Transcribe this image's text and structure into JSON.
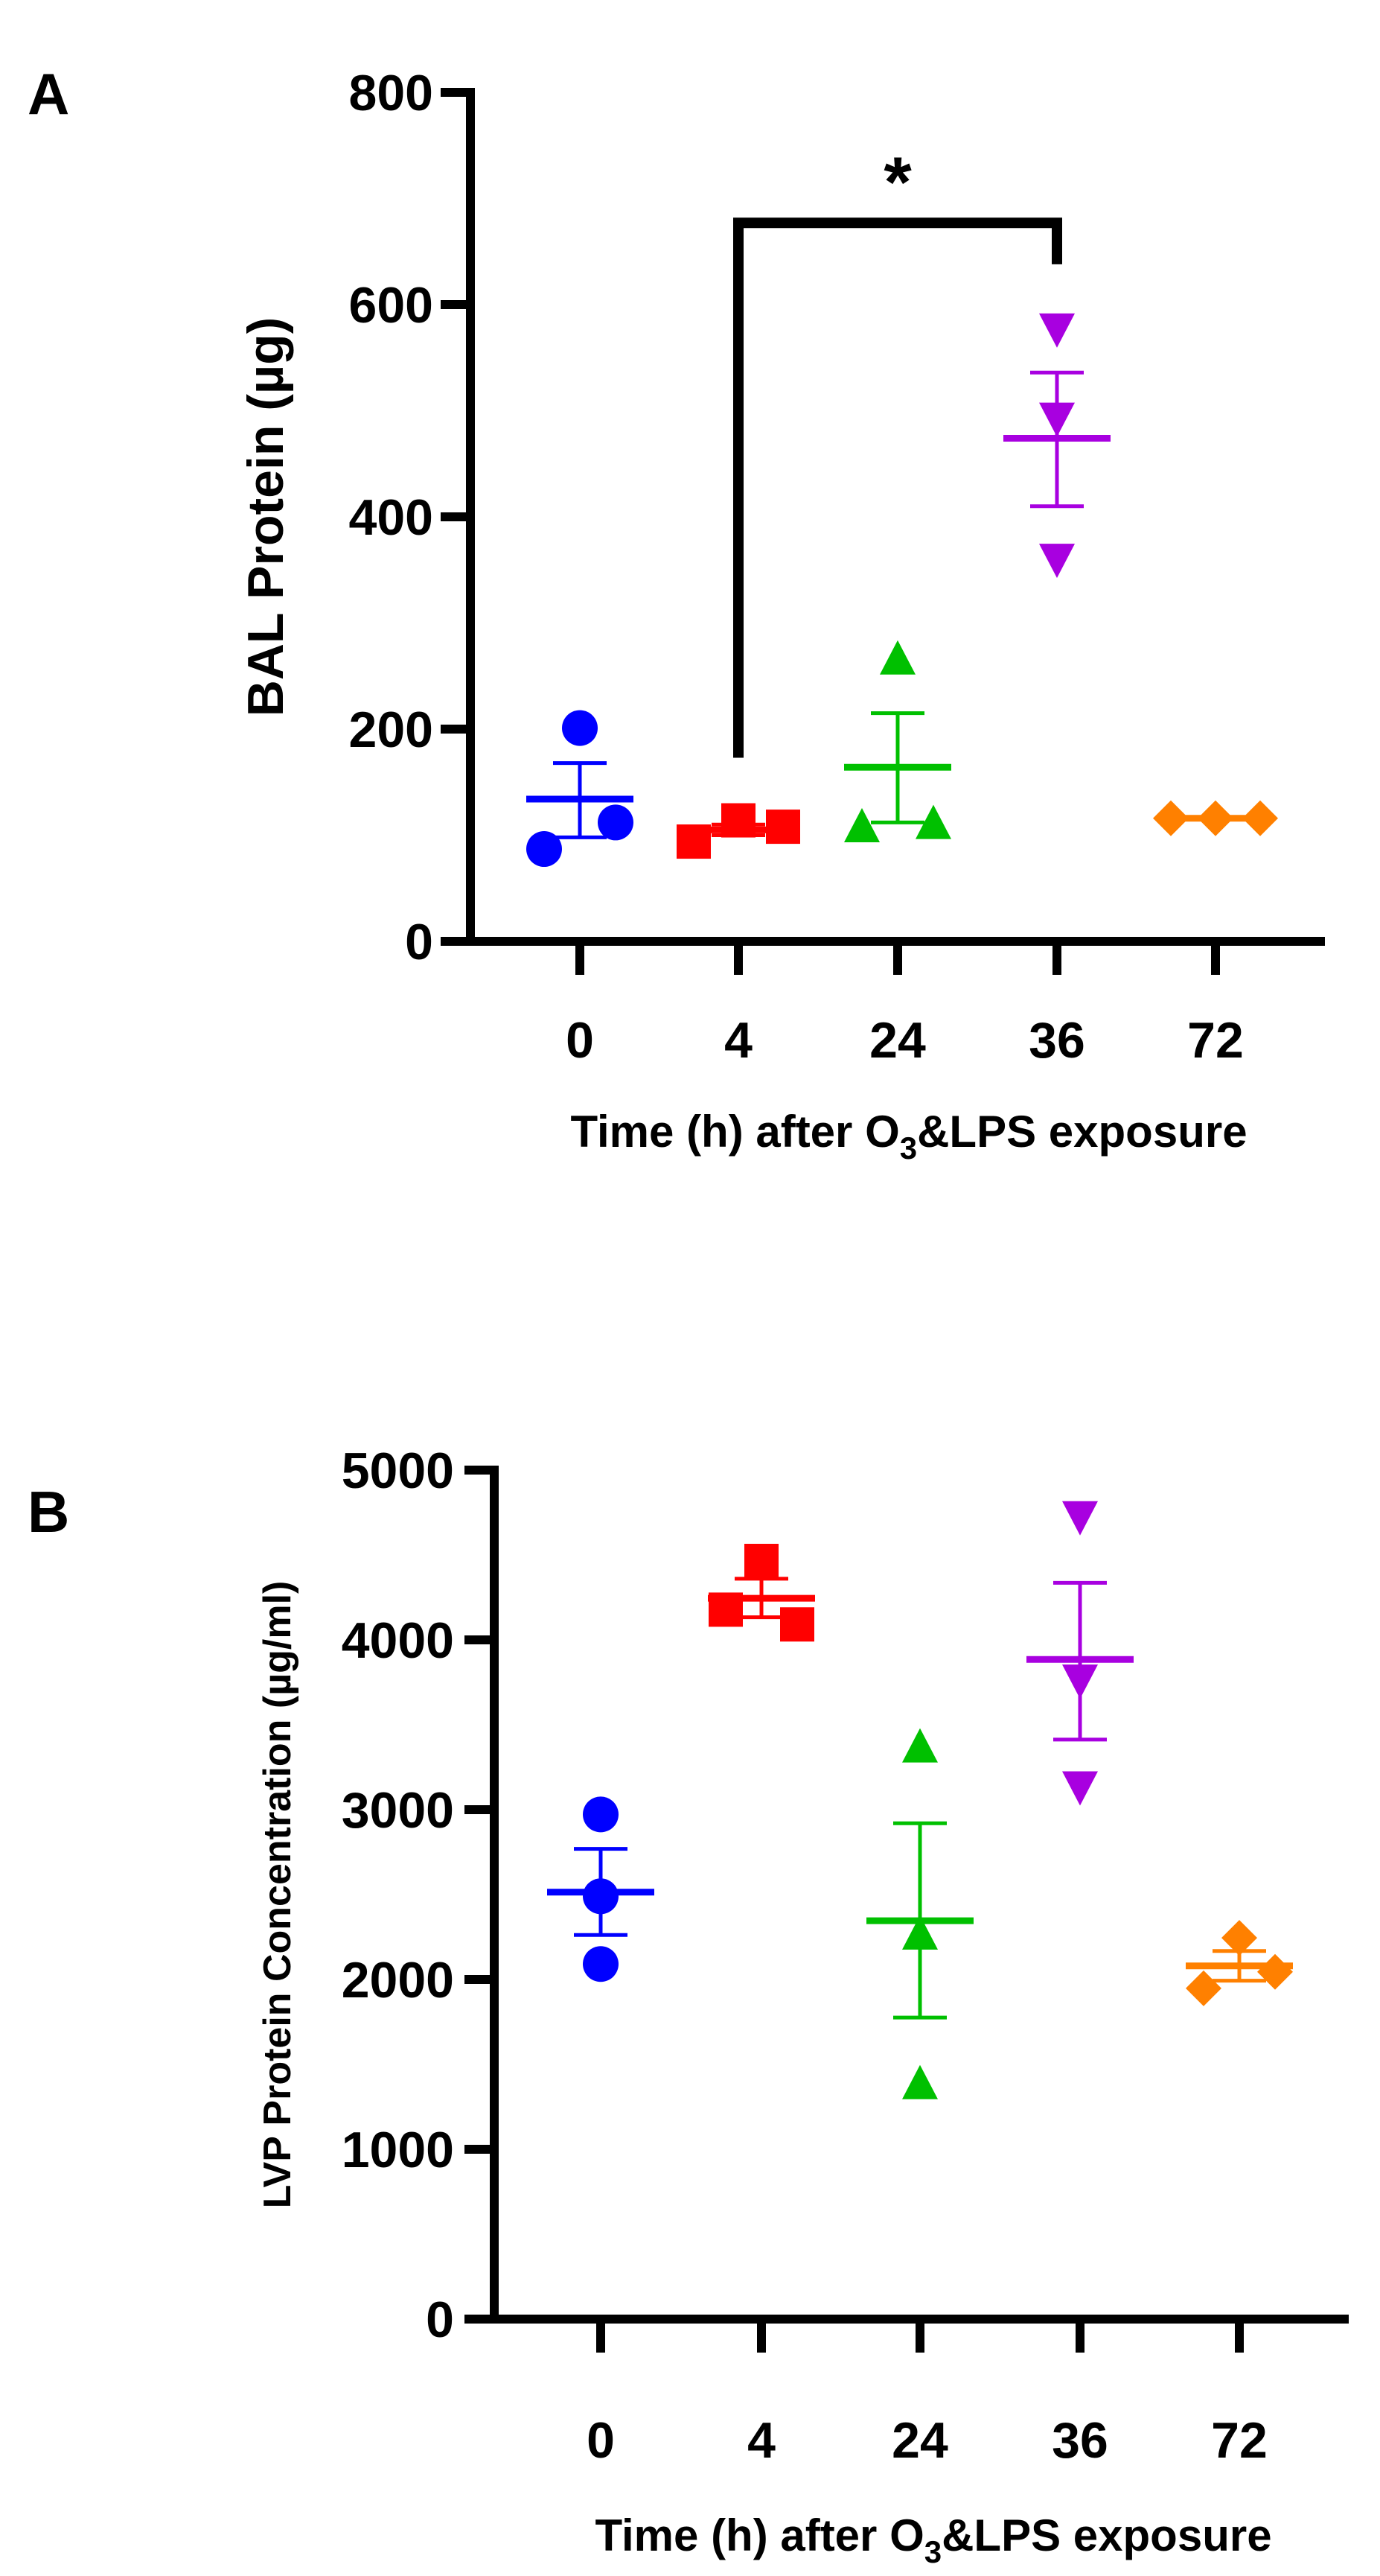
{
  "colors": {
    "0": "#0000ff",
    "4": "#ff0000",
    "24": "#00c000",
    "36": "#a800e0",
    "72": "#ff8000",
    "axis": "#000000"
  },
  "chart_data": [
    {
      "panel_label": "A",
      "type": "scatter",
      "ylabel": "BAL Protein (µg)",
      "xlabel_main": "Time (h) after O",
      "xlabel_sub": "3",
      "xlabel_rest": "&LPS exposure",
      "ylim": [
        0,
        800
      ],
      "yticks": [
        "0",
        "200",
        "400",
        "600",
        "800"
      ],
      "categories": [
        "0",
        "4",
        "24",
        "36",
        "72"
      ],
      "groups": [
        {
          "name": "0",
          "marker": "circle",
          "points": [
            201,
            112,
            87
          ],
          "mean": 134,
          "sem": [
            98,
            168
          ]
        },
        {
          "name": "4",
          "marker": "square",
          "points": [
            94,
            114,
            108
          ],
          "mean": 105,
          "sem": [
            100,
            110
          ]
        },
        {
          "name": "24",
          "marker": "triangle-up",
          "points": [
            264,
            106,
            109
          ],
          "mean": 164,
          "sem": [
            112,
            215
          ]
        },
        {
          "name": "36",
          "marker": "triangle-down",
          "points": [
            579,
            495,
            362
          ],
          "mean": 474,
          "sem": [
            410,
            536
          ]
        },
        {
          "name": "72",
          "marker": "diamond",
          "points": [
            116,
            116,
            116
          ],
          "mean": 116,
          "sem": [
            116,
            116
          ]
        }
      ],
      "significance": {
        "from": "4",
        "to": "36",
        "label": "*",
        "from_value": 173,
        "top_value": 677,
        "to_value": 638
      }
    },
    {
      "panel_label": "B",
      "type": "scatter",
      "ylabel": "LVP Protein Concentration (µg/ml)",
      "xlabel_main": "Time (h) after O",
      "xlabel_sub": "3",
      "xlabel_rest": "&LPS exposure",
      "ylim": [
        0,
        5000
      ],
      "yticks": [
        "0",
        "1000",
        "2000",
        "3000",
        "4000",
        "5000"
      ],
      "categories": [
        "0",
        "4",
        "24",
        "36",
        "72"
      ],
      "groups": [
        {
          "name": "0",
          "marker": "circle",
          "points": [
            2972,
            2490,
            2091
          ],
          "mean": 2514,
          "sem": [
            2262,
            2769
          ]
        },
        {
          "name": "4",
          "marker": "square",
          "points": [
            4465,
            4091,
            4178
          ],
          "mean": 4245,
          "sem": [
            4133,
            4360
          ]
        },
        {
          "name": "24",
          "marker": "triangle-up",
          "points": [
            3357,
            2255,
            1374
          ],
          "mean": 2346,
          "sem": [
            1776,
            2920
          ]
        },
        {
          "name": "36",
          "marker": "triangle-down",
          "points": [
            4738,
            3776,
            3147
          ],
          "mean": 3885,
          "sem": [
            3413,
            4336
          ]
        },
        {
          "name": "72",
          "marker": "diamond",
          "points": [
            2245,
            2045,
            1948
          ],
          "mean": 2080,
          "sem": [
            1993,
            2168
          ]
        }
      ]
    }
  ]
}
